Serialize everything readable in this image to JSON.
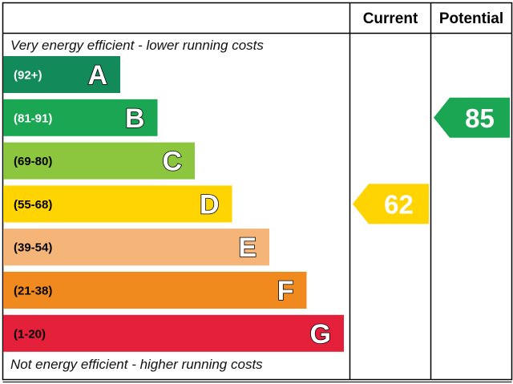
{
  "chart_data": {
    "type": "bar",
    "columns": {
      "current": "Current",
      "potential": "Potential"
    },
    "top_note": "Very energy efficient - lower running costs",
    "bottom_note": "Not energy efficient - higher running costs",
    "bands": [
      {
        "range": "(92+)",
        "letter": "A",
        "color": "#138a5a",
        "range_color": "#ffffff"
      },
      {
        "range": "(81-91)",
        "letter": "B",
        "color": "#1ba654",
        "range_color": "#ffffff"
      },
      {
        "range": "(69-80)",
        "letter": "C",
        "color": "#8cc63e",
        "range_color": "#000000"
      },
      {
        "range": "(55-68)",
        "letter": "D",
        "color": "#ffd400",
        "range_color": "#000000"
      },
      {
        "range": "(39-54)",
        "letter": "E",
        "color": "#f5b478",
        "range_color": "#000000"
      },
      {
        "range": "(21-38)",
        "letter": "F",
        "color": "#f08a1e",
        "range_color": "#000000"
      },
      {
        "range": "(1-20)",
        "letter": "G",
        "color": "#e5203a",
        "range_color": "#000000"
      }
    ],
    "current": {
      "value": 62,
      "band": "D",
      "color": "#ffd400"
    },
    "potential": {
      "value": 85,
      "band": "B",
      "color": "#1ba654"
    }
  }
}
